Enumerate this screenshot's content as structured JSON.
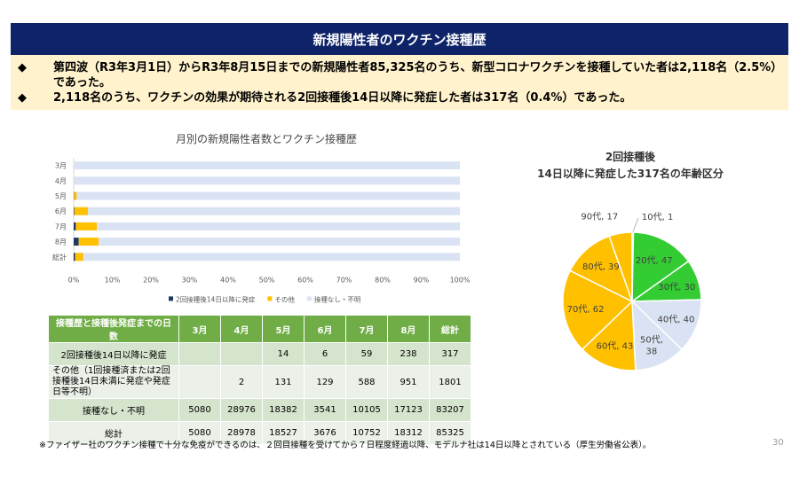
{
  "header": {
    "title": "新規陽性者のワクチン接種歴"
  },
  "summary": {
    "bullet_mark": "◆",
    "line1": "第四波（R3年3月1日）からR3年8月15日までの新規陽性者85,325名のうち、新型コロナワクチンを接種していた者は2,118名（2.5%）であった。",
    "line2": "2,118名のうち、ワクチンの効果が期待される2回接種後14日以降に発症した者は317名（0.4%）であった。"
  },
  "chart_data": [
    {
      "type": "bar",
      "orientation": "horizontal",
      "stacked": "percent",
      "title": "月別の新規陽性者数とワクチン接種歴",
      "categories": [
        "3月",
        "4月",
        "5月",
        "6月",
        "7月",
        "8月",
        "総計"
      ],
      "series": [
        {
          "name": "2回接種後14日以降に発症",
          "color": "#1f3864",
          "values": [
            0,
            0,
            14,
            6,
            59,
            238,
            317
          ]
        },
        {
          "name": "その他",
          "color": "#ffc000",
          "values": [
            0,
            2,
            131,
            129,
            588,
            951,
            1801
          ]
        },
        {
          "name": "接種なし・不明",
          "color": "#dae3f3",
          "values": [
            5080,
            28976,
            18382,
            3541,
            10105,
            17123,
            83207
          ]
        }
      ],
      "x_ticks": [
        "0%",
        "10%",
        "20%",
        "30%",
        "40%",
        "50%",
        "60%",
        "70%",
        "80%",
        "90%",
        "100%"
      ],
      "xlim": [
        0,
        100
      ],
      "legend_position": "bottom"
    },
    {
      "type": "pie",
      "title_line1": "2回接種後",
      "title_line2": "14日以降に発症した317名の年齢区分",
      "slices": [
        {
          "label": "10代, 1",
          "value": 1,
          "color": "#dae3f3"
        },
        {
          "label": "20代, 47",
          "value": 47,
          "color": "#33cc33"
        },
        {
          "label": "30代, 30",
          "value": 30,
          "color": "#33cc33"
        },
        {
          "label": "40代, 40",
          "value": 40,
          "color": "#dae3f3"
        },
        {
          "label": "50代, 38",
          "value": 38,
          "color": "#dae3f3"
        },
        {
          "label": "60代, 43",
          "value": 43,
          "color": "#ffc000"
        },
        {
          "label": "70代, 62",
          "value": 62,
          "color": "#ffc000"
        },
        {
          "label": "80代, 39",
          "value": 39,
          "color": "#ffc000"
        },
        {
          "label": "90代, 17",
          "value": 17,
          "color": "#ffc000"
        }
      ]
    }
  ],
  "table": {
    "header": [
      "接種歴と接種後発症までの日数",
      "3月",
      "4月",
      "5月",
      "6月",
      "7月",
      "8月",
      "総計"
    ],
    "rows": [
      [
        "2回接種後14日以降に発症",
        "",
        "",
        "14",
        "6",
        "59",
        "238",
        "317"
      ],
      [
        "その他（1回接種済または2回接種後14日未満に発症や発症日等不明）",
        "",
        "2",
        "131",
        "129",
        "588",
        "951",
        "1801"
      ],
      [
        "接種なし・不明",
        "5080",
        "28976",
        "18382",
        "3541",
        "10105",
        "17123",
        "83207"
      ],
      [
        "総計",
        "5080",
        "28978",
        "18527",
        "3676",
        "10752",
        "18312",
        "85325"
      ]
    ]
  },
  "footnote": "※ファイザー社のワクチン接種で十分な免疫ができるのは、２回目接種を受けてから７日程度経過以降、モデルナ社は14日以降とされている（厚生労働省公表）。",
  "page_number": "30"
}
